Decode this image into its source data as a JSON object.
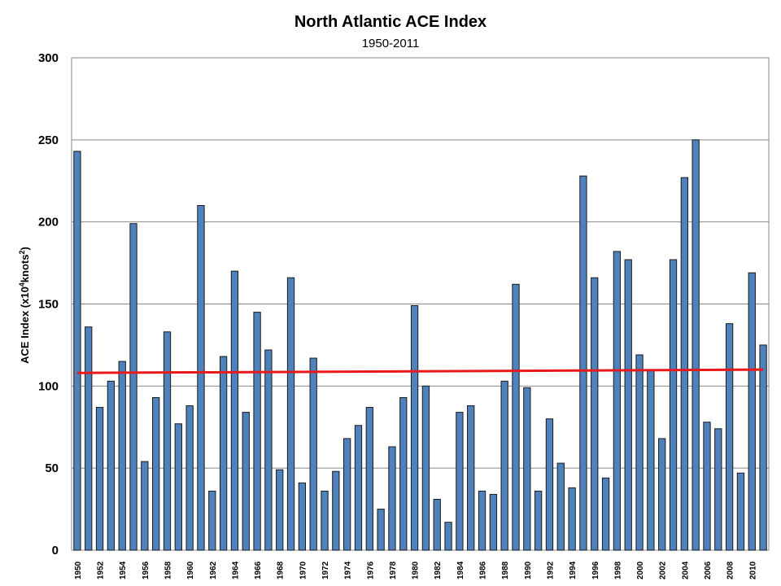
{
  "chart_data": {
    "type": "bar",
    "title": "North Atlantic ACE Index",
    "subtitle": "1950-2011",
    "xlabel": "",
    "ylabel": "ACE Index (x10",
    "ylabel_sup1": "4",
    "ylabel_mid": "knots",
    "ylabel_sup2": "2",
    "ylabel_end": ")",
    "ylim": [
      0,
      300
    ],
    "yticks": [
      0,
      50,
      100,
      150,
      200,
      250,
      300
    ],
    "grid": true,
    "bar_color": "#4f81bd",
    "trend_color": "#e8191b",
    "categories": [
      "1950",
      "1951",
      "1952",
      "1953",
      "1954",
      "1955",
      "1956",
      "1957",
      "1958",
      "1959",
      "1960",
      "1961",
      "1962",
      "1963",
      "1964",
      "1965",
      "1966",
      "1967",
      "1968",
      "1969",
      "1970",
      "1971",
      "1972",
      "1973",
      "1974",
      "1975",
      "1976",
      "1977",
      "1978",
      "1979",
      "1980",
      "1981",
      "1982",
      "1983",
      "1984",
      "1985",
      "1986",
      "1987",
      "1988",
      "1989",
      "1990",
      "1991",
      "1992",
      "1993",
      "1994",
      "1995",
      "1996",
      "1997",
      "1998",
      "1999",
      "2000",
      "2001",
      "2002",
      "2003",
      "2004",
      "2005",
      "2006",
      "2007",
      "2008",
      "2009",
      "2010",
      "2011"
    ],
    "xtick_labels": [
      "1950",
      "1952",
      "1954",
      "1956",
      "1958",
      "1960",
      "1962",
      "1964",
      "1966",
      "1968",
      "1970",
      "1972",
      "1974",
      "1976",
      "1978",
      "1980",
      "1982",
      "1984",
      "1986",
      "1988",
      "1990",
      "1992",
      "1994",
      "1996",
      "1998",
      "2000",
      "2002",
      "2004",
      "2006",
      "2008",
      "2010"
    ],
    "series": [
      {
        "values": [
          243,
          136,
          87,
          103,
          115,
          199,
          54,
          93,
          133,
          77,
          88,
          210,
          36,
          118,
          170,
          84,
          145,
          122,
          49,
          166,
          41,
          117,
          36,
          48,
          68,
          76,
          87,
          25,
          63,
          93,
          149,
          100,
          31,
          17,
          84,
          88,
          36,
          34,
          103,
          162,
          99,
          36,
          80,
          53,
          38,
          228,
          166,
          44,
          182,
          177,
          119,
          110,
          68,
          177,
          227,
          250,
          78,
          74,
          138,
          47,
          169,
          125
        ]
      }
    ],
    "trend": {
      "start": 108,
      "end": 110
    }
  }
}
